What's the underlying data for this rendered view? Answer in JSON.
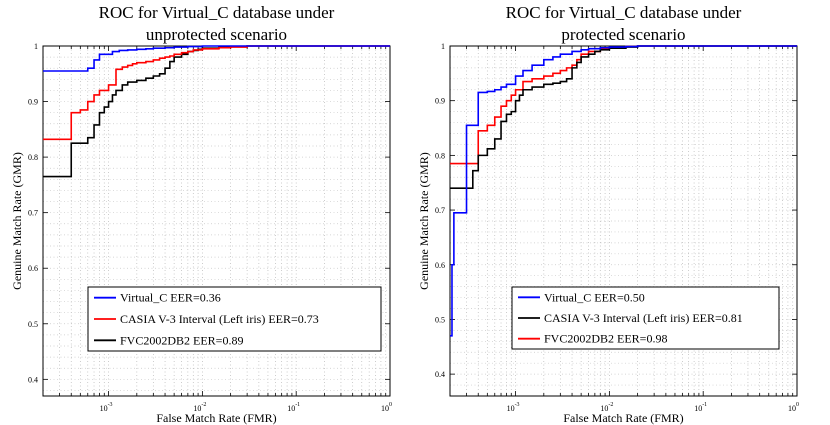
{
  "chart_data": [
    {
      "type": "line",
      "title_lines": [
        "ROC for Virtual_C database under",
        "unprotected scenario"
      ],
      "xlabel": "False Match Rate (FMR)",
      "ylabel": "Genuine Match Rate (GMR)",
      "xscale": "log",
      "xlim": [
        0.0002,
        1
      ],
      "ylim": [
        0.37,
        1.0
      ],
      "x_ticks": [
        {
          "value": 0.001,
          "mantissa": "10",
          "exp": "-3"
        },
        {
          "value": 0.01,
          "mantissa": "10",
          "exp": "-2"
        },
        {
          "value": 0.1,
          "mantissa": "10",
          "exp": "-1"
        },
        {
          "value": 1,
          "mantissa": "10",
          "exp": "0"
        }
      ],
      "y_ticks": [
        0.4,
        0.5,
        0.6,
        0.7,
        0.8,
        0.9,
        1
      ],
      "y_tick_labels": [
        "0.4",
        "0.5",
        "0.6",
        "0.7",
        "0.8",
        "0.9",
        "1"
      ],
      "grid": true,
      "legend_position": "bottom-center",
      "series": [
        {
          "name": "Virtual_C EER=0.36",
          "color": "#0000ff",
          "x": [
            0.0002,
            0.0003,
            0.0006,
            0.0007,
            0.0008,
            0.0011,
            0.0013,
            0.0016,
            0.002,
            0.0025,
            0.003,
            0.004,
            0.005,
            0.007,
            0.01,
            0.02,
            1
          ],
          "y": [
            0.955,
            0.955,
            0.96,
            0.975,
            0.985,
            0.99,
            0.992,
            0.993,
            0.994,
            0.995,
            0.996,
            0.997,
            0.998,
            0.999,
            1.0,
            1.0,
            1.0
          ]
        },
        {
          "name": "CASIA V-3 Interval (Left iris) EER=0.73",
          "color": "#ff0000",
          "x": [
            0.0002,
            0.0004,
            0.0005,
            0.0006,
            0.0007,
            0.0008,
            0.001,
            0.0012,
            0.0014,
            0.0016,
            0.0018,
            0.002,
            0.0025,
            0.003,
            0.0035,
            0.004,
            0.0045,
            0.005,
            0.006,
            0.007,
            0.008,
            0.01,
            0.015,
            0.02,
            0.03,
            1
          ],
          "y": [
            0.832,
            0.88,
            0.885,
            0.9,
            0.912,
            0.92,
            0.93,
            0.958,
            0.962,
            0.965,
            0.968,
            0.97,
            0.972,
            0.975,
            0.978,
            0.98,
            0.982,
            0.985,
            0.988,
            0.99,
            0.993,
            0.995,
            0.997,
            0.998,
            1.0,
            1.0
          ]
        },
        {
          "name": "FVC2002DB2 EER=0.89",
          "color": "#000000",
          "x": [
            0.0002,
            0.0004,
            0.0006,
            0.0007,
            0.0008,
            0.0009,
            0.001,
            0.0011,
            0.0012,
            0.0014,
            0.0016,
            0.002,
            0.0025,
            0.003,
            0.0035,
            0.004,
            0.0045,
            0.005,
            0.006,
            0.007,
            0.008,
            0.009,
            0.01,
            0.015,
            0.02,
            0.03,
            1
          ],
          "y": [
            0.765,
            0.825,
            0.835,
            0.858,
            0.88,
            0.89,
            0.9,
            0.912,
            0.92,
            0.93,
            0.935,
            0.938,
            0.942,
            0.946,
            0.95,
            0.96,
            0.972,
            0.98,
            0.985,
            0.99,
            0.992,
            0.994,
            0.996,
            0.998,
            0.999,
            1.0,
            1.0
          ]
        }
      ]
    },
    {
      "type": "line",
      "title_lines": [
        "ROC for Virtual_C database under",
        "protected scenario"
      ],
      "xlabel": "False Match Rate (FMR)",
      "ylabel": "Genuine Match Rate (GMR)",
      "xscale": "log",
      "xlim": [
        0.0002,
        1
      ],
      "ylim": [
        0.36,
        1.0
      ],
      "x_ticks": [
        {
          "value": 0.001,
          "mantissa": "10",
          "exp": "-3"
        },
        {
          "value": 0.01,
          "mantissa": "10",
          "exp": "-2"
        },
        {
          "value": 0.1,
          "mantissa": "10",
          "exp": "-1"
        },
        {
          "value": 1,
          "mantissa": "10",
          "exp": "0"
        }
      ],
      "y_ticks": [
        0.4,
        0.5,
        0.6,
        0.7,
        0.8,
        0.9,
        1
      ],
      "y_tick_labels": [
        "0.4",
        "0.5",
        "0.6",
        "0.7",
        "0.8",
        "0.9",
        "1"
      ],
      "grid": true,
      "legend_position": "bottom-center",
      "series": [
        {
          "name": "Virtual_C EER=0.50",
          "color": "#0000ff",
          "x": [
            0.0002,
            0.00021,
            0.00022,
            0.0003,
            0.0004,
            0.0005,
            0.0006,
            0.0007,
            0.0008,
            0.001,
            0.0012,
            0.0015,
            0.002,
            0.0025,
            0.003,
            0.004,
            0.005,
            0.006,
            0.008,
            0.01,
            0.015,
            0.02,
            1
          ],
          "y": [
            0.47,
            0.6,
            0.695,
            0.855,
            0.915,
            0.917,
            0.92,
            0.925,
            0.93,
            0.945,
            0.955,
            0.965,
            0.975,
            0.98,
            0.985,
            0.99,
            0.993,
            0.995,
            0.997,
            0.998,
            0.999,
            1.0,
            1.0
          ]
        },
        {
          "name": "CASIA V-3 Interval (Left iris) EER=0.81",
          "color": "#000000",
          "x": [
            0.0002,
            0.00035,
            0.0004,
            0.0005,
            0.0006,
            0.0007,
            0.0008,
            0.0009,
            0.001,
            0.0011,
            0.0012,
            0.0015,
            0.002,
            0.0025,
            0.003,
            0.0035,
            0.004,
            0.0045,
            0.005,
            0.006,
            0.007,
            0.008,
            0.01,
            0.015,
            0.02,
            1
          ],
          "y": [
            0.74,
            0.772,
            0.8,
            0.812,
            0.83,
            0.862,
            0.875,
            0.88,
            0.9,
            0.91,
            0.92,
            0.925,
            0.93,
            0.932,
            0.935,
            0.94,
            0.96,
            0.97,
            0.98,
            0.985,
            0.99,
            0.993,
            0.996,
            0.998,
            1.0,
            1.0
          ]
        },
        {
          "name": "FVC2002DB2 EER=0.98",
          "color": "#ff0000",
          "x": [
            0.0002,
            0.0003,
            0.0004,
            0.0005,
            0.0006,
            0.0007,
            0.0008,
            0.0009,
            0.001,
            0.0012,
            0.0015,
            0.002,
            0.0025,
            0.003,
            0.0035,
            0.004,
            0.0045,
            0.005,
            0.006,
            0.008,
            0.01,
            0.015,
            0.02,
            1
          ],
          "y": [
            0.785,
            0.785,
            0.845,
            0.855,
            0.87,
            0.89,
            0.9,
            0.91,
            0.92,
            0.935,
            0.94,
            0.945,
            0.95,
            0.955,
            0.96,
            0.965,
            0.975,
            0.985,
            0.99,
            0.995,
            0.997,
            0.999,
            1.0,
            1.0
          ]
        }
      ]
    }
  ]
}
